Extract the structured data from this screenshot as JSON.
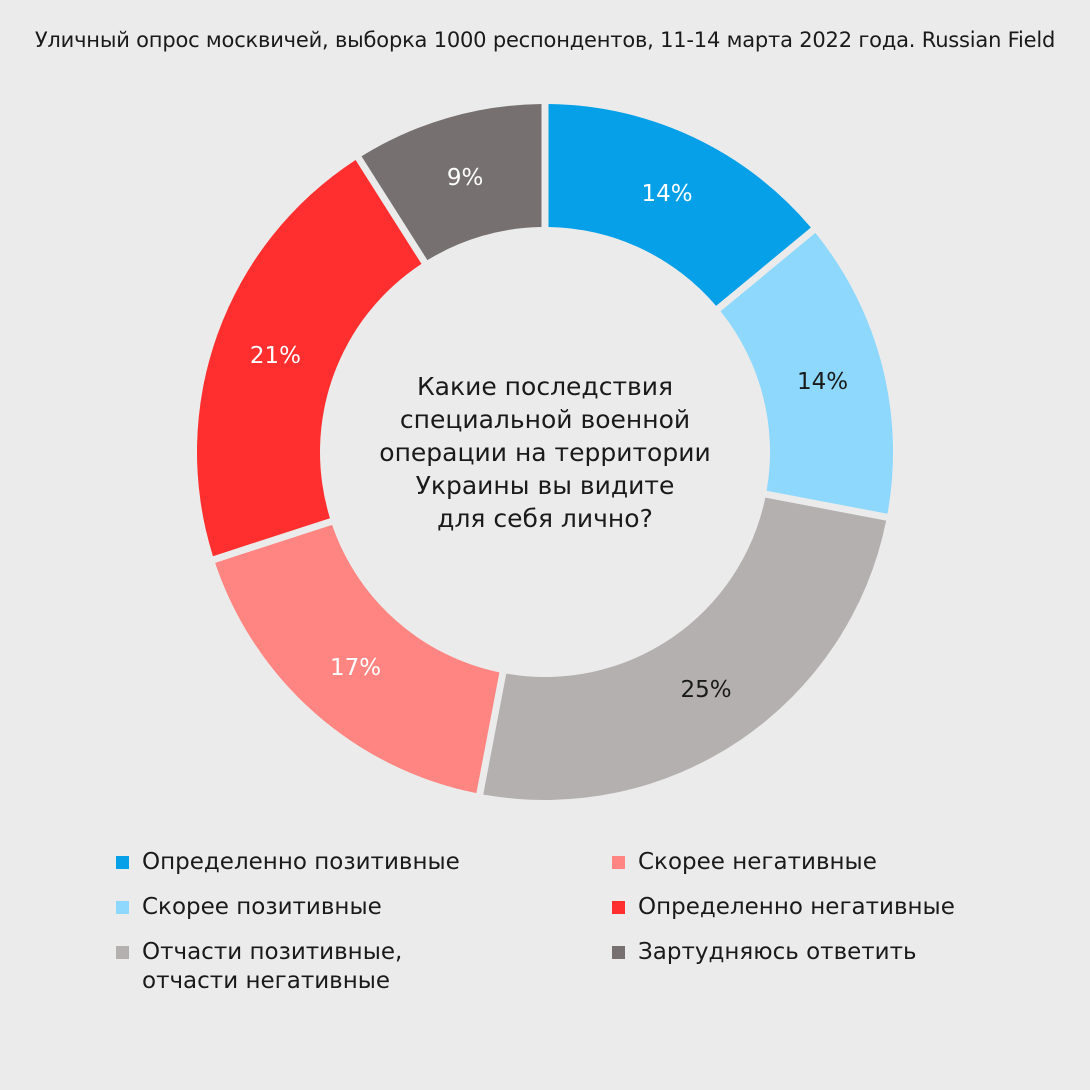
{
  "header": {
    "text": "Уличный опрос москвичей, выборка 1000 респондентов, 11-14 марта 2022 года. Russian Field"
  },
  "chart_data": {
    "type": "donut",
    "center_text": [
      "Какие последствия",
      "специальной военной",
      "операции на территории",
      "Украины вы видите",
      "для себя лично?"
    ],
    "slices": [
      {
        "name": "Определенно позитивные",
        "value": 14,
        "label": "14%",
        "color": "#05a0e8",
        "label_color": "#ffffff"
      },
      {
        "name": "Скорее позитивные",
        "value": 14,
        "label": "14%",
        "color": "#8dd8fc",
        "label_color": "#1a1a1a"
      },
      {
        "name": "Отчасти позитивные, отчасти негативные",
        "value": 25,
        "label": "25%",
        "color": "#b4b0b0",
        "label_color": "#1a1a1a"
      },
      {
        "name": "Скорее негативные",
        "value": 17,
        "label": "17%",
        "color": "#ff8582",
        "label_color": "#ffffff"
      },
      {
        "name": "Определенно негативные",
        "value": 21,
        "label": "21%",
        "color": "#ff2f2f",
        "label_color": "#ffffff"
      },
      {
        "name": "Зартудняюсь ответить",
        "value": 9,
        "label": "9%",
        "color": "#767070",
        "label_color": "#ffffff"
      }
    ],
    "legend": {
      "left": [
        {
          "text": "Определенно позитивные",
          "color": "#05a0e8"
        },
        {
          "text": "Скорее позитивные",
          "color": "#8dd8fc"
        },
        {
          "text": "Отчасти позитивные,\nотчасти негативные",
          "color": "#b4b0b0"
        }
      ],
      "right": [
        {
          "text": "Скорее негативные",
          "color": "#ff8582"
        },
        {
          "text": "Определенно негативные",
          "color": "#ff2f2f"
        },
        {
          "text": "Зартудняюсь ответить",
          "color": "#767070"
        }
      ]
    }
  }
}
